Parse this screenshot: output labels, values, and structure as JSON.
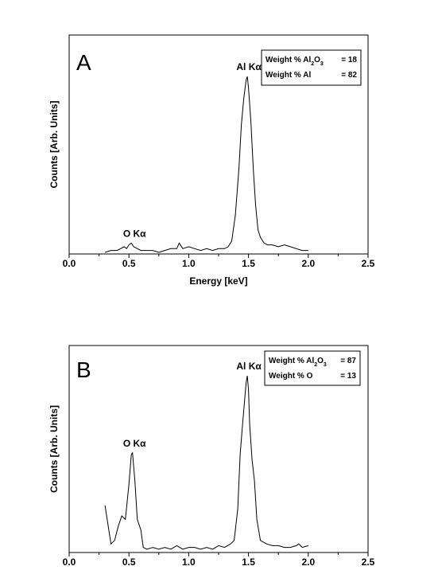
{
  "chart_data": [
    {
      "type": "line",
      "panel": "A",
      "xlabel": "Energy [keV]",
      "ylabel": "Counts [Arb. Units]",
      "xlim": [
        0.0,
        2.5
      ],
      "xticks": [
        "0.0",
        "0.5",
        "1.0",
        "1.5",
        "2.0",
        "2.5"
      ],
      "ymax": 100,
      "peaks": [
        {
          "label": "O Kα",
          "x": 0.52
        },
        {
          "label": "Al Kα",
          "x": 1.49
        }
      ],
      "legend": [
        {
          "label": "Weight % Al₂O₃",
          "value": "= 18"
        },
        {
          "label": "Weight % Al",
          "value": "= 82"
        }
      ],
      "series": [
        {
          "x": [
            0.3,
            0.35,
            0.4,
            0.43,
            0.46,
            0.48,
            0.5,
            0.52,
            0.54,
            0.57,
            0.6,
            0.65,
            0.7,
            0.75,
            0.8,
            0.85,
            0.9,
            0.92,
            0.95,
            1.0,
            1.05,
            1.1,
            1.15,
            1.2,
            1.25,
            1.3,
            1.33,
            1.36,
            1.39,
            1.42,
            1.44,
            1.46,
            1.48,
            1.49,
            1.5,
            1.52,
            1.54,
            1.56,
            1.58,
            1.6,
            1.63,
            1.66,
            1.7,
            1.75,
            1.8,
            1.85,
            1.9,
            1.95,
            2.0
          ],
          "y": [
            0,
            1,
            1,
            2,
            3,
            2,
            4,
            5,
            3,
            2,
            1,
            1,
            1,
            0,
            1,
            2,
            2,
            5,
            2,
            3,
            2,
            1,
            2,
            1,
            2,
            2,
            3,
            6,
            20,
            45,
            68,
            82,
            92,
            94,
            88,
            70,
            45,
            25,
            12,
            8,
            5,
            4,
            4,
            3,
            4,
            3,
            2,
            1,
            1
          ]
        }
      ]
    },
    {
      "type": "line",
      "panel": "B",
      "ylabel": "Counts [Arb. Units]",
      "xlim": [
        0.0,
        2.5
      ],
      "xticks": [
        "0.0",
        "0.5",
        "1.0",
        "1.5",
        "2.0",
        "2.5"
      ],
      "ymax": 100,
      "peaks": [
        {
          "label": "O Kα",
          "x": 0.52
        },
        {
          "label": "Al Kα",
          "x": 1.49
        }
      ],
      "legend": [
        {
          "label": "Weight % Al₂O₃",
          "value": "= 87"
        },
        {
          "label": "Weight % O",
          "value": "= 13"
        }
      ],
      "series": [
        {
          "x": [
            0.3,
            0.35,
            0.38,
            0.41,
            0.44,
            0.47,
            0.5,
            0.52,
            0.53,
            0.55,
            0.57,
            0.6,
            0.62,
            0.65,
            0.7,
            0.75,
            0.8,
            0.85,
            0.9,
            0.95,
            1.0,
            1.05,
            1.1,
            1.15,
            1.2,
            1.25,
            1.3,
            1.35,
            1.38,
            1.41,
            1.43,
            1.45,
            1.47,
            1.48,
            1.49,
            1.5,
            1.51,
            1.53,
            1.55,
            1.57,
            1.6,
            1.65,
            1.7,
            1.75,
            1.8,
            1.85,
            1.9,
            1.92,
            1.95,
            2.0
          ],
          "y": [
            26,
            4,
            6,
            14,
            20,
            18,
            38,
            55,
            56,
            40,
            18,
            12,
            2,
            1,
            2,
            1,
            2,
            1,
            3,
            1,
            2,
            2,
            1,
            2,
            1,
            3,
            2,
            4,
            6,
            24,
            55,
            72,
            88,
            96,
            100,
            92,
            72,
            52,
            40,
            18,
            6,
            4,
            3,
            3,
            2,
            2,
            3,
            4,
            2,
            3
          ]
        }
      ]
    }
  ]
}
